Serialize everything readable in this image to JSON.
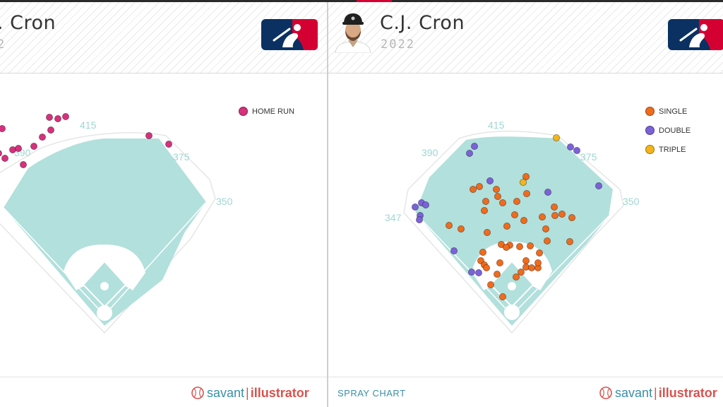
{
  "colors": {
    "field": "#b2e0dc",
    "infield_dirt": "#ffffff",
    "home_run": "#d5317c",
    "single": "#ef6b1d",
    "double": "#7b62d8",
    "triple": "#f4b41a",
    "accent": "#3a8fa8",
    "brand_red": "#d9534f"
  },
  "left_panel": {
    "player_name": ". Cron",
    "year": "2",
    "logo_icon": "mlb-logo-icon",
    "footer": {
      "brand_word1": "savant",
      "brand_sep": "|",
      "brand_word2": "illustrator"
    }
  },
  "right_panel": {
    "player_name": "C.J. Cron",
    "year": "2022",
    "headshot_icon": "player-headshot-icon",
    "logo_icon": "mlb-logo-icon",
    "footer": {
      "label": "SPRAY CHART",
      "brand_word1": "savant",
      "brand_sep": "|",
      "brand_word2": "illustrator"
    }
  },
  "chart_data": [
    {
      "type": "scatter",
      "chart_kind": "spray chart",
      "distances": {
        "lf": "",
        "lcf": "390",
        "cf": "415",
        "rcf": "375",
        "rf": "350"
      },
      "legend_position": "top-right",
      "series": [
        {
          "name": "HOME RUN",
          "color": "#d5317c",
          "points": [
            [
              3,
              176
            ],
            [
              -2,
              211
            ],
            [
              7,
              218
            ],
            [
              18,
              206
            ],
            [
              26,
              204
            ],
            [
              33,
              227
            ],
            [
              48,
              201
            ],
            [
              60,
              188
            ],
            [
              72,
              178
            ],
            [
              70,
              160
            ],
            [
              82,
              162
            ],
            [
              93,
              159
            ],
            [
              211,
              186
            ],
            [
              239,
              198
            ]
          ]
        }
      ]
    },
    {
      "type": "scatter",
      "chart_kind": "spray chart",
      "distances": {
        "lf": "347",
        "lcf": "390",
        "cf": "415",
        "rcf": "375",
        "rf": "350"
      },
      "legend_position": "top-right",
      "series": [
        {
          "name": "SINGLE",
          "color": "#ef6b1d",
          "points": [
            [
              745,
              244
            ],
            [
              703,
              262
            ],
            [
              679,
              258
            ],
            [
              670,
              262
            ],
            [
              705,
              272
            ],
            [
              712,
              281
            ],
            [
              688,
              279
            ],
            [
              686,
              292
            ],
            [
              732,
              279
            ],
            [
              746,
              268
            ],
            [
              729,
              298
            ],
            [
              742,
              306
            ],
            [
              768,
              301
            ],
            [
              785,
              287
            ],
            [
              786,
              299
            ],
            [
              796,
              297
            ],
            [
              810,
              302
            ],
            [
              773,
              318
            ],
            [
              775,
              335
            ],
            [
              807,
              336
            ],
            [
              636,
              313
            ],
            [
              653,
              318
            ],
            [
              690,
              323
            ],
            [
              718,
              314
            ],
            [
              710,
              340
            ],
            [
              722,
              341
            ],
            [
              717,
              344
            ],
            [
              736,
              343
            ],
            [
              751,
              342
            ],
            [
              764,
              352
            ],
            [
              684,
              351
            ],
            [
              681,
              363
            ],
            [
              686,
              369
            ],
            [
              689,
              373
            ],
            [
              708,
              366
            ],
            [
              745,
              363
            ],
            [
              745,
              372
            ],
            [
              753,
              373
            ],
            [
              762,
              373
            ],
            [
              762,
              366
            ],
            [
              738,
              379
            ],
            [
              731,
              386
            ],
            [
              704,
              382
            ],
            [
              695,
              397
            ],
            [
              712,
              414
            ]
          ]
        },
        {
          "name": "DOUBLE",
          "color": "#7b62d8",
          "points": [
            [
              672,
              201
            ],
            [
              665,
              211
            ],
            [
              694,
              250
            ],
            [
              776,
              266
            ],
            [
              808,
              202
            ],
            [
              817,
              207
            ],
            [
              848,
              257
            ],
            [
              597,
              281
            ],
            [
              603,
              284
            ],
            [
              588,
              287
            ],
            [
              595,
              299
            ],
            [
              594,
              305
            ],
            [
              643,
              349
            ],
            [
              668,
              379
            ],
            [
              678,
              380
            ]
          ]
        },
        {
          "name": "TRIPLE",
          "color": "#f4b41a",
          "points": [
            [
              788,
              189
            ],
            [
              741,
              252
            ]
          ]
        }
      ]
    }
  ]
}
